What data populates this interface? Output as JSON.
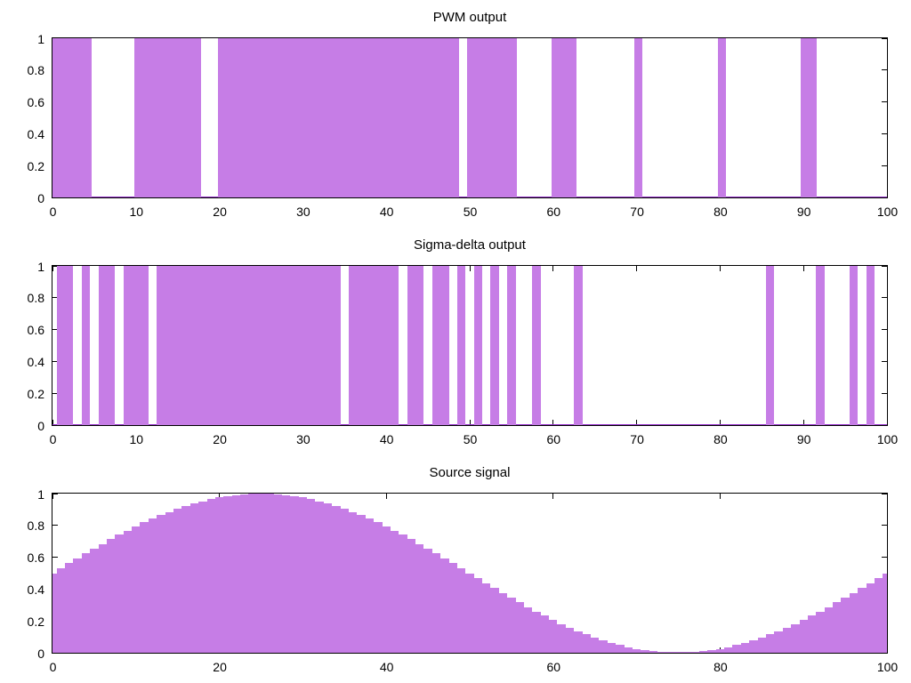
{
  "figure": {
    "background": "#ffffff",
    "n_plots": 3
  },
  "colors": {
    "fill": "#c67de6",
    "baseline": "#9633cc",
    "axis": "#000000",
    "text": "#000000"
  },
  "chart_data": [
    {
      "type": "bar",
      "render": "pulse",
      "title": "PWM output",
      "xlabel": "",
      "ylabel": "",
      "xlim": [
        0,
        100
      ],
      "ylim": [
        0,
        1
      ],
      "grid": false,
      "legend": "none",
      "x_tick_labels": [
        "0",
        "10",
        "20",
        "30",
        "40",
        "50",
        "60",
        "70",
        "80",
        "90",
        "100"
      ],
      "y_tick_labels": [
        "0",
        "0.2",
        "0.4",
        "0.6",
        "0.8",
        "1"
      ],
      "baseline": true,
      "on_intervals": [
        [
          0,
          4.7
        ],
        [
          9.8,
          17.8
        ],
        [
          19.8,
          48.7
        ],
        [
          49.7,
          55.7
        ],
        [
          59.8,
          62.8
        ],
        [
          69.7,
          70.7
        ],
        [
          79.7,
          80.7
        ],
        [
          89.7,
          91.6
        ]
      ]
    },
    {
      "type": "bar",
      "render": "pulse",
      "title": "Sigma-delta output",
      "xlabel": "",
      "ylabel": "",
      "xlim": [
        0,
        100
      ],
      "ylim": [
        0,
        1
      ],
      "grid": false,
      "legend": "none",
      "x_tick_labels": [
        "0",
        "10",
        "20",
        "30",
        "40",
        "50",
        "60",
        "70",
        "80",
        "90",
        "100"
      ],
      "y_tick_labels": [
        "0",
        "0.2",
        "0.4",
        "0.6",
        "0.8",
        "1"
      ],
      "baseline": true,
      "on_intervals": [
        [
          0.5,
          2.5
        ],
        [
          3.5,
          4.5
        ],
        [
          5.5,
          7.5
        ],
        [
          8.5,
          11.5
        ],
        [
          12.5,
          34.5
        ],
        [
          35.5,
          41.5
        ],
        [
          42.5,
          44.5
        ],
        [
          45.5,
          47.5
        ],
        [
          48.5,
          49.5
        ],
        [
          50.5,
          51.5
        ],
        [
          52.5,
          53.5
        ],
        [
          54.5,
          55.5
        ],
        [
          57.5,
          58.5
        ],
        [
          62.5,
          63.5
        ],
        [
          85.5,
          86.5
        ],
        [
          91.5,
          92.5
        ],
        [
          95.5,
          96.5
        ],
        [
          97.5,
          98.5
        ]
      ]
    },
    {
      "type": "bar",
      "render": "staircase",
      "title": "Source signal",
      "xlabel": "",
      "ylabel": "",
      "xlim": [
        0,
        100
      ],
      "ylim": [
        0,
        1
      ],
      "grid": false,
      "legend": "none",
      "x_tick_labels": [
        "0",
        "20",
        "40",
        "60",
        "80",
        "100"
      ],
      "y_tick_labels": [
        "0",
        "0.2",
        "0.4",
        "0.6",
        "0.8",
        "1"
      ],
      "baseline": false,
      "box_width": 1,
      "x_start": 0,
      "values": [
        0.5,
        0.531,
        0.563,
        0.594,
        0.624,
        0.655,
        0.684,
        0.713,
        0.741,
        0.768,
        0.794,
        0.819,
        0.842,
        0.864,
        0.885,
        0.905,
        0.922,
        0.938,
        0.952,
        0.965,
        0.976,
        0.984,
        0.991,
        0.996,
        0.999,
        1,
        0.999,
        0.996,
        0.991,
        0.984,
        0.976,
        0.965,
        0.952,
        0.938,
        0.922,
        0.905,
        0.885,
        0.864,
        0.842,
        0.819,
        0.794,
        0.768,
        0.741,
        0.713,
        0.684,
        0.655,
        0.624,
        0.594,
        0.563,
        0.531,
        0.5,
        0.469,
        0.437,
        0.406,
        0.376,
        0.345,
        0.316,
        0.287,
        0.259,
        0.232,
        0.206,
        0.181,
        0.158,
        0.136,
        0.115,
        0.095,
        0.078,
        0.062,
        0.048,
        0.035,
        0.024,
        0.016,
        0.009,
        0.004,
        0.001,
        0,
        0.001,
        0.004,
        0.009,
        0.016,
        0.024,
        0.035,
        0.048,
        0.062,
        0.078,
        0.095,
        0.115,
        0.136,
        0.158,
        0.181,
        0.206,
        0.232,
        0.259,
        0.287,
        0.316,
        0.345,
        0.376,
        0.406,
        0.437,
        0.469,
        0.5
      ]
    }
  ]
}
